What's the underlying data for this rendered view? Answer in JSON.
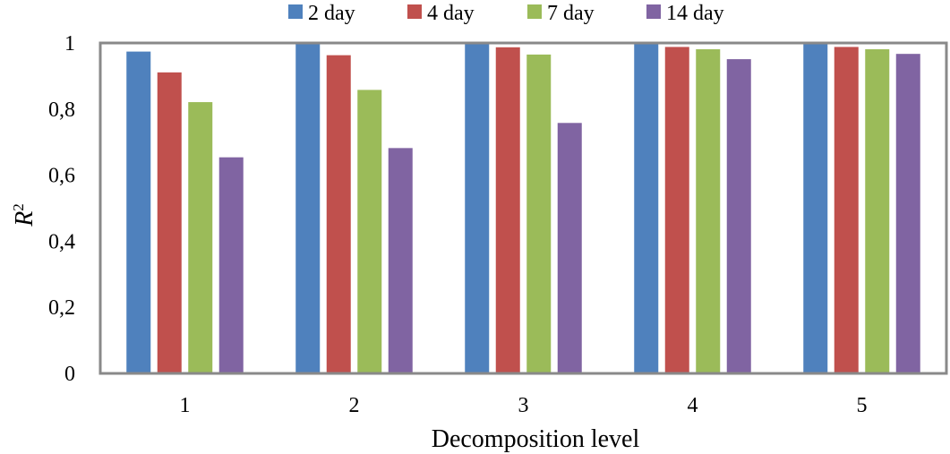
{
  "chart_data": {
    "type": "bar",
    "title": "",
    "xlabel": "Decomposition level",
    "ylabel": "R²",
    "ylabel_base": "R",
    "ylabel_sup": "2",
    "categories": [
      "1",
      "2",
      "3",
      "4",
      "5"
    ],
    "ylim": [
      0,
      1
    ],
    "yticks": [
      0,
      0.2,
      0.4,
      0.6,
      0.8,
      1
    ],
    "ytick_labels": [
      "0",
      "0,2",
      "0,4",
      "0,6",
      "0,8",
      "1"
    ],
    "grid": false,
    "legend_position": "top",
    "series": [
      {
        "name": "2 day",
        "color": "#4F81BD",
        "values": [
          0.974,
          0.997,
          0.998,
          0.999,
          0.999
        ]
      },
      {
        "name": "4 day",
        "color": "#C0504D",
        "values": [
          0.911,
          0.963,
          0.987,
          0.988,
          0.988
        ]
      },
      {
        "name": "7 day",
        "color": "#9BBB59",
        "values": [
          0.821,
          0.858,
          0.965,
          0.981,
          0.981
        ]
      },
      {
        "name": "14 day",
        "color": "#8064A2",
        "values": [
          0.654,
          0.682,
          0.758,
          0.951,
          0.967
        ]
      }
    ]
  }
}
